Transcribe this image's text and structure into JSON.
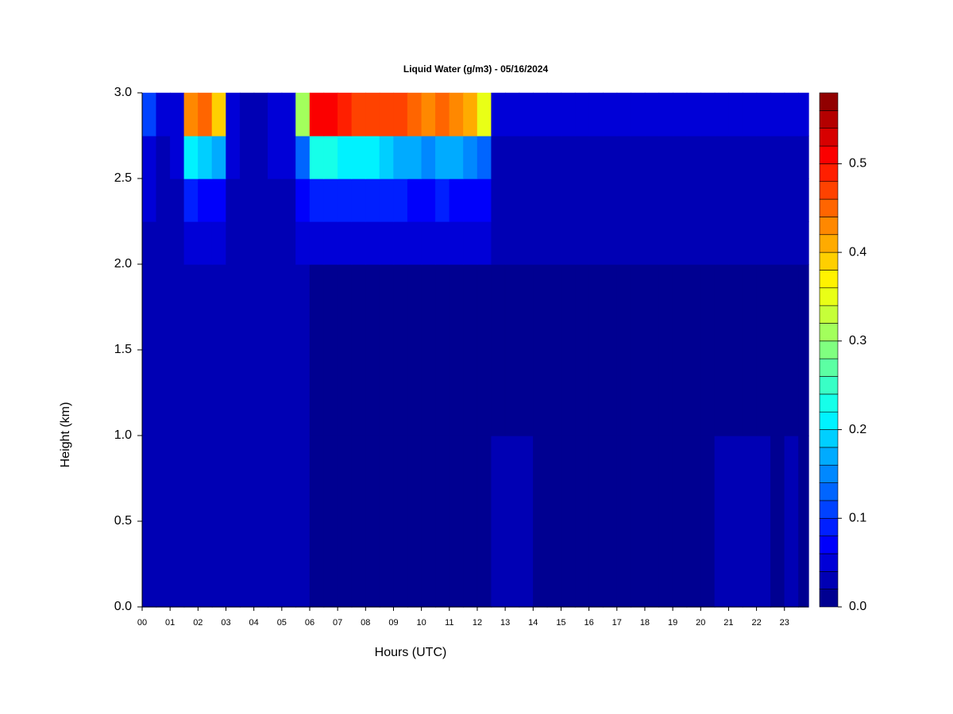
{
  "chart_data": {
    "type": "heatmap",
    "title": "Liquid Water (g/m3) - 05/16/2024",
    "x_label": "Hours (UTC)",
    "y_label": "Height (km)",
    "colormap": "jet",
    "n_levels": 29,
    "zlim": [
      0,
      0.58
    ],
    "zticks": [
      {
        "value": 0,
        "label": "0.0"
      },
      {
        "value": 0.1,
        "label": "0.1"
      },
      {
        "value": 0.2,
        "label": "0.2"
      },
      {
        "value": 0.3,
        "label": "0.3"
      },
      {
        "value": 0.4,
        "label": "0.4"
      },
      {
        "value": 0.5,
        "label": "0.5"
      }
    ],
    "xlim": [
      0,
      23.86
    ],
    "ylim": [
      0,
      3
    ],
    "xticks": [
      {
        "value": 0,
        "label": "00"
      },
      {
        "value": 1,
        "label": "01"
      },
      {
        "value": 2,
        "label": "02"
      },
      {
        "value": 3,
        "label": "03"
      },
      {
        "value": 4,
        "label": "04"
      },
      {
        "value": 5,
        "label": "05"
      },
      {
        "value": 6,
        "label": "06"
      },
      {
        "value": 7,
        "label": "07"
      },
      {
        "value": 8,
        "label": "08"
      },
      {
        "value": 9,
        "label": "09"
      },
      {
        "value": 10,
        "label": "10"
      },
      {
        "value": 11,
        "label": "11"
      },
      {
        "value": 12,
        "label": "12"
      },
      {
        "value": 13,
        "label": "13"
      },
      {
        "value": 14,
        "label": "14"
      },
      {
        "value": 15,
        "label": "15"
      },
      {
        "value": 16,
        "label": "16"
      },
      {
        "value": 17,
        "label": "17"
      },
      {
        "value": 18,
        "label": "18"
      },
      {
        "value": 19,
        "label": "19"
      },
      {
        "value": 20,
        "label": "20"
      },
      {
        "value": 21,
        "label": "21"
      },
      {
        "value": 22,
        "label": "22"
      },
      {
        "value": 23,
        "label": "23"
      }
    ],
    "yticks": [
      {
        "value": 0,
        "label": "0.0"
      },
      {
        "value": 0.5,
        "label": "0.5"
      },
      {
        "value": 1,
        "label": "1.0"
      },
      {
        "value": 1.5,
        "label": "1.5"
      },
      {
        "value": 2,
        "label": "2.0"
      },
      {
        "value": 2.5,
        "label": "2.5"
      },
      {
        "value": 3,
        "label": "3.0"
      }
    ],
    "xbins": [
      0,
      0.5,
      1,
      1.5,
      2,
      2.5,
      3,
      3.5,
      4,
      4.5,
      5,
      5.5,
      6,
      6.5,
      7,
      7.5,
      8,
      8.5,
      9,
      9.5,
      10,
      10.5,
      11,
      11.5,
      12,
      12.5,
      13,
      13.5,
      14,
      14.5,
      15,
      15.5,
      16,
      16.5,
      17,
      17.5,
      18,
      18.5,
      19,
      19.5,
      20,
      20.5,
      21,
      21.5,
      22,
      22.5,
      23,
      23.5,
      23.86
    ],
    "ybins": [
      0,
      1,
      2,
      2.25,
      2.5,
      2.75,
      3
    ],
    "z": [
      [
        0.03,
        0.03,
        0.03,
        0.03,
        0.03,
        0.025,
        0.03,
        0.02,
        0.02,
        0.02,
        0.02,
        0.02,
        0.015,
        0.015,
        0.015,
        0.015,
        0.015,
        0.015,
        0.015,
        0.015,
        0.015,
        0.015,
        0.015,
        0.015,
        0.015,
        0.03,
        0.03,
        0.02,
        0.015,
        0.015,
        0.015,
        0.015,
        0.015,
        0.015,
        0.015,
        0.015,
        0.015,
        0.015,
        0.015,
        0.015,
        0.015,
        0.02,
        0.02,
        0.02,
        0.02,
        0.015,
        0.02,
        0.015
      ],
      [
        0.03,
        0.02,
        0.02,
        0.02,
        0.02,
        0.02,
        0.02,
        0.02,
        0.02,
        0.03,
        0.02,
        0.02,
        0.01,
        0.01,
        0.01,
        0.01,
        0.01,
        0.01,
        0.01,
        0.01,
        0.01,
        0.01,
        0.01,
        0.01,
        0.01,
        0.01,
        0.01,
        0.01,
        0.01,
        0.01,
        0.01,
        0.01,
        0.01,
        0.01,
        0.01,
        0.01,
        0.01,
        0.01,
        0.01,
        0.01,
        0.01,
        0.01,
        0.01,
        0.01,
        0.01,
        0.01,
        0.01,
        0.01
      ],
      [
        0.03,
        0.02,
        0.02,
        0.04,
        0.04,
        0.04,
        0.02,
        0.02,
        0.02,
        0.02,
        0.02,
        0.04,
        0.05,
        0.05,
        0.05,
        0.05,
        0.05,
        0.05,
        0.05,
        0.05,
        0.05,
        0.05,
        0.05,
        0.05,
        0.05,
        0.02,
        0.02,
        0.02,
        0.02,
        0.02,
        0.02,
        0.02,
        0.02,
        0.02,
        0.02,
        0.02,
        0.02,
        0.02,
        0.02,
        0.02,
        0.02,
        0.02,
        0.02,
        0.02,
        0.02,
        0.02,
        0.02,
        0.02
      ],
      [
        0.04,
        0.03,
        0.03,
        0.08,
        0.07,
        0.07,
        0.03,
        0.02,
        0.02,
        0.03,
        0.03,
        0.06,
        0.09,
        0.09,
        0.09,
        0.08,
        0.08,
        0.08,
        0.08,
        0.07,
        0.07,
        0.08,
        0.07,
        0.07,
        0.06,
        0.03,
        0.03,
        0.03,
        0.03,
        0.03,
        0.03,
        0.03,
        0.03,
        0.03,
        0.03,
        0.03,
        0.03,
        0.03,
        0.03,
        0.03,
        0.03,
        0.03,
        0.03,
        0.03,
        0.03,
        0.03,
        0.03,
        0.03
      ],
      [
        0.05,
        0.03,
        0.04,
        0.2,
        0.18,
        0.17,
        0.04,
        0.03,
        0.03,
        0.04,
        0.04,
        0.12,
        0.22,
        0.22,
        0.21,
        0.2,
        0.2,
        0.19,
        0.17,
        0.16,
        0.15,
        0.17,
        0.16,
        0.15,
        0.12,
        0.03,
        0.03,
        0.03,
        0.03,
        0.03,
        0.03,
        0.03,
        0.03,
        0.03,
        0.03,
        0.03,
        0.03,
        0.03,
        0.03,
        0.03,
        0.03,
        0.03,
        0.03,
        0.03,
        0.03,
        0.03,
        0.03,
        0.03
      ],
      [
        0.1,
        0.04,
        0.05,
        0.42,
        0.45,
        0.38,
        0.05,
        0.03,
        0.03,
        0.04,
        0.05,
        0.3,
        0.5,
        0.5,
        0.48,
        0.47,
        0.47,
        0.47,
        0.46,
        0.45,
        0.42,
        0.45,
        0.42,
        0.4,
        0.35,
        0.04,
        0.04,
        0.04,
        0.04,
        0.04,
        0.04,
        0.04,
        0.04,
        0.04,
        0.04,
        0.04,
        0.04,
        0.04,
        0.04,
        0.04,
        0.04,
        0.04,
        0.04,
        0.04,
        0.04,
        0.04,
        0.04,
        0.04
      ]
    ]
  }
}
